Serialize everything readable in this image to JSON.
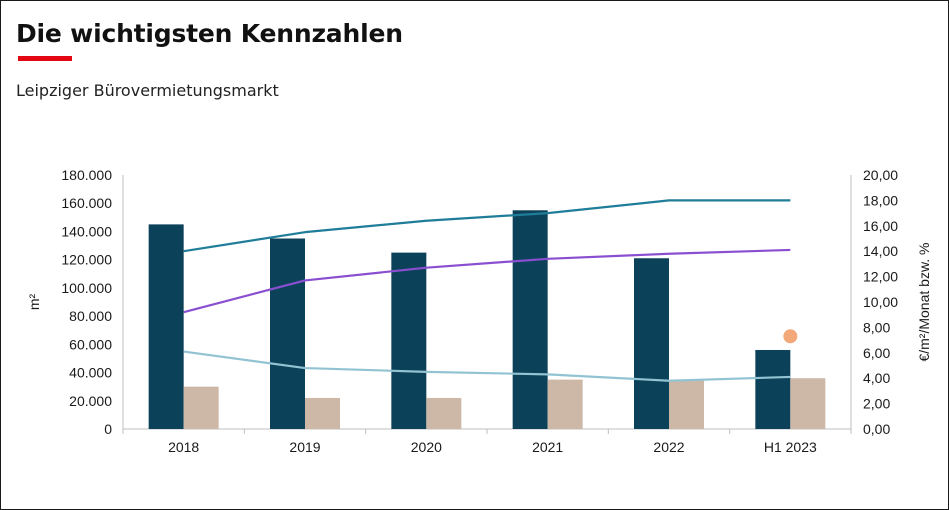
{
  "header": {
    "title": "Die wichtigsten Kennzahlen",
    "subtitle": "Leipziger Bürovermietungsmarkt"
  },
  "colors": {
    "accent_underline": "#e30613",
    "bar_primary": "#0c4259",
    "bar_secondary": "#cdb8a8",
    "line_teal": "#1f7d99",
    "line_purple": "#8a4fd0",
    "line_lightblue": "#92c3d3",
    "marker_orange": "#f2a878"
  },
  "chart_data": {
    "type": "bar",
    "categories": [
      "2018",
      "2019",
      "2020",
      "2021",
      "2022",
      "H1 2023"
    ],
    "ylabel": "m²",
    "y2label": "€/m²/Monat bzw. %",
    "ylim": [
      0,
      180000
    ],
    "y2lim": [
      0,
      20
    ],
    "yticks": [
      "0",
      "20.000",
      "40.000",
      "60.000",
      "80.000",
      "100.000",
      "120.000",
      "140.000",
      "160.000",
      "180.000"
    ],
    "y2ticks": [
      "0,00",
      "2,00",
      "4,00",
      "6,00",
      "8,00",
      "10,00",
      "12,00",
      "14,00",
      "16,00",
      "18,00",
      "20,00"
    ],
    "grid": false,
    "legend": "none",
    "bars": [
      {
        "axis": "left",
        "values": [
          145000,
          135000,
          125000,
          155000,
          121000,
          56000
        ]
      },
      {
        "axis": "left",
        "values": [
          30000,
          22000,
          22000,
          35000,
          35000,
          36000
        ]
      }
    ],
    "lines": [
      {
        "axis": "right",
        "values": [
          14.0,
          15.5,
          16.4,
          17.0,
          18.0,
          18.0
        ]
      },
      {
        "axis": "right",
        "values": [
          9.2,
          11.7,
          12.7,
          13.4,
          13.8,
          14.1
        ]
      },
      {
        "axis": "right",
        "values": [
          6.1,
          4.8,
          4.5,
          4.3,
          3.8,
          4.1
        ]
      }
    ],
    "markers": [
      {
        "axis": "right",
        "category": "H1 2023",
        "value": 7.3
      }
    ]
  }
}
